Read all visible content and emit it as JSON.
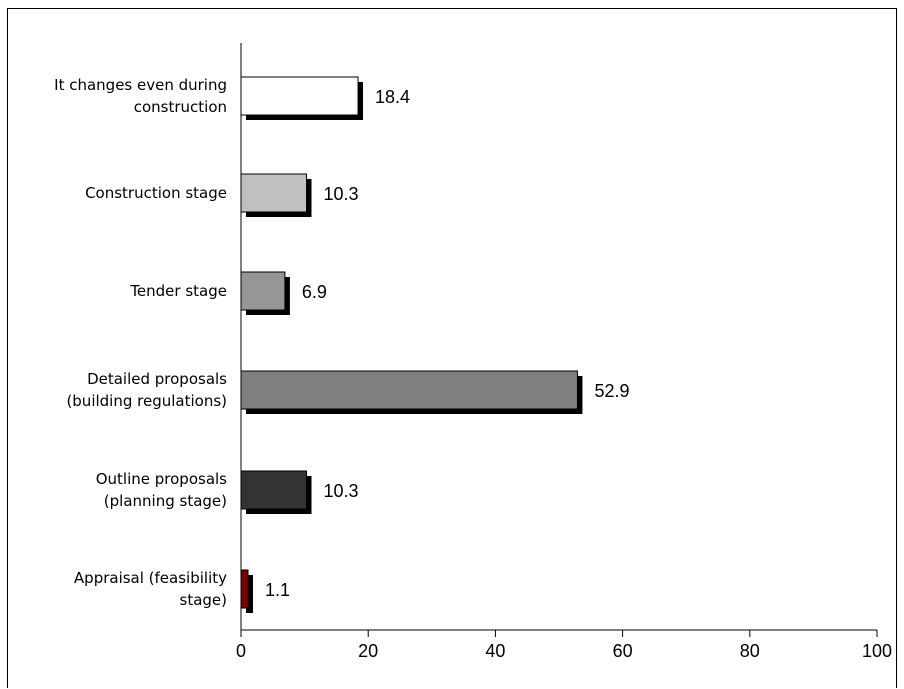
{
  "chart_data": {
    "type": "bar",
    "orientation": "horizontal",
    "categories": [
      [
        "It changes even during",
        "construction"
      ],
      [
        "Construction stage"
      ],
      [
        "Tender stage"
      ],
      [
        "Detailed proposals",
        "(building regulations)"
      ],
      [
        "Outline proposals",
        "(planning stage)"
      ],
      [
        "Appraisal (feasibility",
        "stage)"
      ]
    ],
    "values": [
      18.4,
      10.3,
      6.9,
      52.9,
      10.3,
      1.1
    ],
    "value_labels": [
      "18.4",
      "10.3",
      "6.9",
      "52.9",
      "10.3",
      "1.1"
    ],
    "colors": [
      "#ffffff",
      "#c0c0c0",
      "#969696",
      "#808080",
      "#333333",
      "#800000"
    ],
    "xlim": [
      0,
      100
    ],
    "xticks": [
      0,
      20,
      40,
      60,
      80,
      100
    ],
    "title": "",
    "xlabel": "",
    "ylabel": "",
    "grid": false,
    "legend": "none"
  }
}
